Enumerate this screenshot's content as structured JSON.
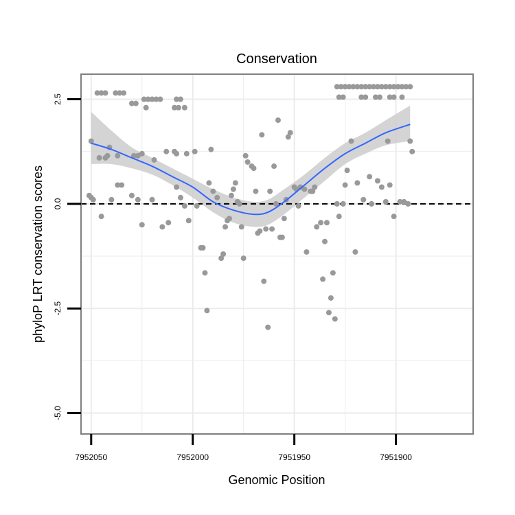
{
  "chart_data": {
    "type": "scatter",
    "title": "Conservation",
    "xlabel": "Genomic Position",
    "ylabel": "phyloP LRT conservation scores",
    "x_reversed": true,
    "xlim": [
      7952055,
      7951862
    ],
    "ylim": [
      -5.5,
      3.1
    ],
    "x_ticks": [
      {
        "value": 7952050,
        "label": "7952050"
      },
      {
        "value": 7952000,
        "label": "7952000"
      },
      {
        "value": 7951950,
        "label": "7951950"
      },
      {
        "value": 7951900,
        "label": "7951900"
      }
    ],
    "y_ticks": [
      {
        "value": 2.5,
        "label": "2.5"
      },
      {
        "value": 0.0,
        "label": "0.0"
      },
      {
        "value": -2.5,
        "label": "-2.5"
      },
      {
        "value": -5.0,
        "label": "-5.0"
      }
    ],
    "reference_line": {
      "y": 0,
      "style": "dashed"
    },
    "grid": true,
    "colors": {
      "points": "#999999",
      "smooth_line": "#3366ff",
      "ribbon": "#cccccc",
      "panel_border": "#7f7f7f",
      "grid": "#ebebeb"
    },
    "points": [
      [
        7952047,
        2.65
      ],
      [
        7952045,
        2.65
      ],
      [
        7952043,
        2.65
      ],
      [
        7952038,
        2.65
      ],
      [
        7952036,
        2.65
      ],
      [
        7952034,
        2.65
      ],
      [
        7952030,
        2.4
      ],
      [
        7952028,
        2.4
      ],
      [
        7952024,
        2.5
      ],
      [
        7952022,
        2.5
      ],
      [
        7952020,
        2.5
      ],
      [
        7952018,
        2.5
      ],
      [
        7952016,
        2.5
      ],
      [
        7952023,
        2.3
      ],
      [
        7952009,
        2.3
      ],
      [
        7952007,
        2.3
      ],
      [
        7952004,
        2.3
      ],
      [
        7952008,
        2.5
      ],
      [
        7952006,
        2.5
      ],
      [
        7952050,
        1.5
      ],
      [
        7952046,
        1.1
      ],
      [
        7952043,
        1.1
      ],
      [
        7952042,
        1.15
      ],
      [
        7952041,
        1.35
      ],
      [
        7952037,
        1.15
      ],
      [
        7952029,
        1.15
      ],
      [
        7952027,
        1.15
      ],
      [
        7952025,
        1.2
      ],
      [
        7952019,
        1.05
      ],
      [
        7952013,
        1.25
      ],
      [
        7952009,
        1.25
      ],
      [
        7952008,
        1.2
      ],
      [
        7952003,
        1.2
      ],
      [
        7951999,
        1.25
      ],
      [
        7951991,
        1.3
      ],
      [
        7952051,
        0.2
      ],
      [
        7952049,
        0.1
      ],
      [
        7952050,
        0.15
      ],
      [
        7952045,
        -0.3
      ],
      [
        7952040,
        0.1
      ],
      [
        7952037,
        0.45
      ],
      [
        7952035,
        0.45
      ],
      [
        7952030,
        0.2
      ],
      [
        7952027,
        0.1
      ],
      [
        7952025,
        -0.5
      ],
      [
        7952020,
        0.1
      ],
      [
        7952015,
        -0.55
      ],
      [
        7952012,
        -0.45
      ],
      [
        7952008,
        0.4
      ],
      [
        7952006,
        0.15
      ],
      [
        7952004,
        -0.05
      ],
      [
        7952002,
        -0.4
      ],
      [
        7951998,
        -0.05
      ],
      [
        7951996,
        -1.05
      ],
      [
        7951995,
        -1.05
      ],
      [
        7951994,
        -1.65
      ],
      [
        7951993,
        -2.55
      ],
      [
        7951992,
        0.5
      ],
      [
        7951990,
        0.3
      ],
      [
        7951988,
        0.15
      ],
      [
        7951986,
        -1.3
      ],
      [
        7951985,
        -1.2
      ],
      [
        7951984,
        -0.55
      ],
      [
        7951983,
        -0.4
      ],
      [
        7951982,
        -0.35
      ],
      [
        7951981,
        0.2
      ],
      [
        7951980,
        0.35
      ],
      [
        7951979,
        0.5
      ],
      [
        7951978,
        0.05
      ],
      [
        7951977,
        0.0
      ],
      [
        7951976,
        -0.55
      ],
      [
        7951975,
        -1.3
      ],
      [
        7951974,
        1.15
      ],
      [
        7951973,
        1.0
      ],
      [
        7951971,
        0.9
      ],
      [
        7951970,
        0.85
      ],
      [
        7951969,
        0.3
      ],
      [
        7951968,
        -0.7
      ],
      [
        7951967,
        -0.65
      ],
      [
        7951966,
        1.65
      ],
      [
        7951965,
        -1.85
      ],
      [
        7951964,
        -0.6
      ],
      [
        7951963,
        -2.95
      ],
      [
        7951962,
        0.3
      ],
      [
        7951961,
        -0.6
      ],
      [
        7951960,
        0.9
      ],
      [
        7951959,
        0.0
      ],
      [
        7951958,
        2.0
      ],
      [
        7951957,
        -0.8
      ],
      [
        7951956,
        -0.8
      ],
      [
        7951955,
        -0.35
      ],
      [
        7951954,
        0.1
      ],
      [
        7951953,
        1.6
      ],
      [
        7951952,
        1.7
      ],
      [
        7951950,
        0.4
      ],
      [
        7951949,
        0.35
      ],
      [
        7951948,
        -0.05
      ],
      [
        7951947,
        0.4
      ],
      [
        7951945,
        0.35
      ],
      [
        7951944,
        -1.15
      ],
      [
        7951942,
        0.3
      ],
      [
        7951941,
        0.3
      ],
      [
        7951940,
        0.4
      ],
      [
        7951939,
        -0.55
      ],
      [
        7951937,
        -0.45
      ],
      [
        7951936,
        -1.8
      ],
      [
        7951935,
        -0.9
      ],
      [
        7951934,
        -0.45
      ],
      [
        7951933,
        -2.6
      ],
      [
        7951932,
        -2.25
      ],
      [
        7951931,
        -1.65
      ],
      [
        7951930,
        -2.75
      ],
      [
        7951929,
        0.0
      ],
      [
        7951928,
        -0.3
      ],
      [
        7951926,
        0.0
      ],
      [
        7951925,
        0.45
      ],
      [
        7951924,
        0.8
      ],
      [
        7951922,
        1.5
      ],
      [
        7951920,
        -1.15
      ],
      [
        7951919,
        0.5
      ],
      [
        7951916,
        0.1
      ],
      [
        7951913,
        0.65
      ],
      [
        7951912,
        0.0
      ],
      [
        7951909,
        0.55
      ],
      [
        7951907,
        0.4
      ],
      [
        7951905,
        0.05
      ],
      [
        7951904,
        1.5
      ],
      [
        7951903,
        0.45
      ],
      [
        7951901,
        -0.3
      ],
      [
        7951898,
        0.05
      ],
      [
        7951896,
        0.05
      ],
      [
        7951894,
        0.0
      ],
      [
        7951893,
        1.5
      ],
      [
        7951892,
        1.25
      ],
      [
        7951929,
        2.8
      ],
      [
        7951927,
        2.8
      ],
      [
        7951925,
        2.8
      ],
      [
        7951923,
        2.8
      ],
      [
        7951921,
        2.8
      ],
      [
        7951919,
        2.8
      ],
      [
        7951917,
        2.8
      ],
      [
        7951915,
        2.8
      ],
      [
        7951913,
        2.8
      ],
      [
        7951911,
        2.8
      ],
      [
        7951909,
        2.8
      ],
      [
        7951907,
        2.8
      ],
      [
        7951905,
        2.8
      ],
      [
        7951903,
        2.8
      ],
      [
        7951901,
        2.8
      ],
      [
        7951899,
        2.8
      ],
      [
        7951897,
        2.8
      ],
      [
        7951895,
        2.8
      ],
      [
        7951893,
        2.8
      ],
      [
        7951928,
        2.55
      ],
      [
        7951926,
        2.55
      ],
      [
        7951917,
        2.55
      ],
      [
        7951915,
        2.55
      ],
      [
        7951910,
        2.55
      ],
      [
        7951908,
        2.55
      ],
      [
        7951903,
        2.55
      ],
      [
        7951901,
        2.55
      ],
      [
        7951897,
        2.55
      ]
    ],
    "smooth": {
      "x": [
        7952050,
        7952040,
        7952030,
        7952020,
        7952010,
        7952000,
        7951990,
        7951980,
        7951970,
        7951963,
        7951955,
        7951945,
        7951935,
        7951925,
        7951915,
        7951905,
        7951893
      ],
      "fit": [
        1.45,
        1.3,
        1.1,
        0.9,
        0.65,
        0.4,
        0.05,
        -0.15,
        -0.25,
        -0.2,
        0.05,
        0.45,
        0.85,
        1.2,
        1.45,
        1.7,
        1.9
      ],
      "lower": [
        0.95,
        0.95,
        0.85,
        0.7,
        0.45,
        0.15,
        -0.2,
        -0.45,
        -0.55,
        -0.5,
        -0.25,
        0.15,
        0.55,
        0.95,
        1.2,
        1.4,
        1.5
      ],
      "upper": [
        2.2,
        1.75,
        1.35,
        1.1,
        0.85,
        0.6,
        0.35,
        0.15,
        0.05,
        0.1,
        0.35,
        0.7,
        1.1,
        1.45,
        1.7,
        2.0,
        2.35
      ]
    }
  }
}
